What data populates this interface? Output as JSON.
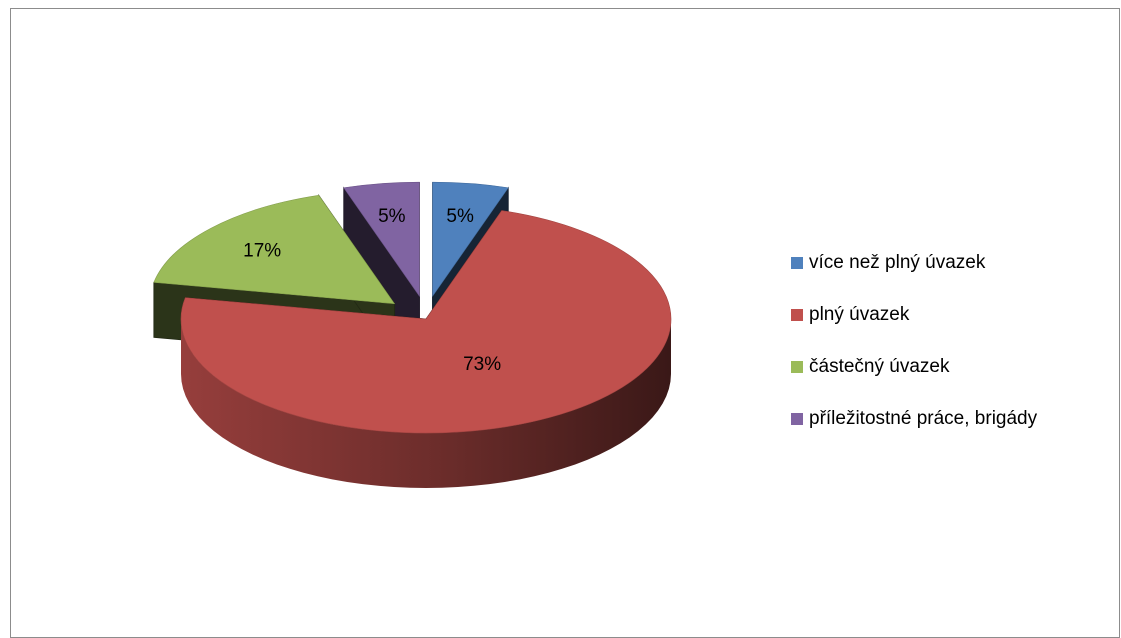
{
  "chart_data": {
    "type": "pie",
    "title": "",
    "slices": [
      {
        "label": "více než plný úvazek",
        "value": 5,
        "data_label": "5%",
        "color": "#4f81bd"
      },
      {
        "label": "plný úvazek",
        "value": 73,
        "data_label": "73%",
        "color": "#c0504d"
      },
      {
        "label": "částečný úvazek",
        "value": 17,
        "data_label": "17%",
        "color": "#9bbb59"
      },
      {
        "label": "příležitostné práce, brigády",
        "value": 5,
        "data_label": "5%",
        "color": "#8064a2"
      }
    ],
    "legend_position": "right",
    "style": "3d-exploded"
  }
}
